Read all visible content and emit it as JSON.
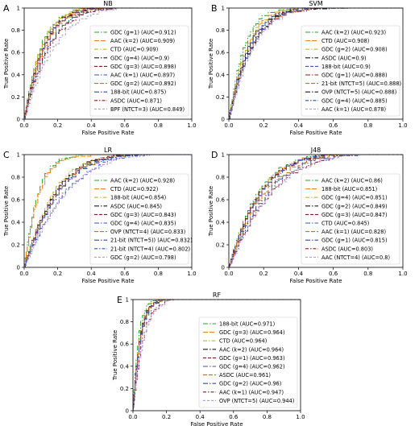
{
  "figure": {
    "panels": [
      {
        "letter": "A",
        "title": "NB",
        "xlabel": "False Positive Rate",
        "ylabel": "True Positive Rate",
        "legend": [
          {
            "label": "GDC (g=1) (AUC=0.912)",
            "color": "#2ca02c",
            "auc": 0.912
          },
          {
            "label": "AAC (k=2) (AUC=0.909)",
            "color": "#ff7f0e",
            "auc": 0.909
          },
          {
            "label": "CTD (AUC=0.909)",
            "color": "#bcbd22",
            "auc": 0.909
          },
          {
            "label": "GDC (g=4) (AUC=0.9)",
            "color": "#1a1a1a",
            "auc": 0.9
          },
          {
            "label": "GDC (g=3) (AUC=0.898)",
            "color": "#8b1a1a",
            "auc": 0.898
          },
          {
            "label": "AAC (k=1) (AUC=0.897)",
            "color": "#3f51b5",
            "auc": 0.897
          },
          {
            "label": "GDC (g=2) (AUC=0.892)",
            "color": "#d2691e",
            "auc": 0.892
          },
          {
            "label": "188-bit (AUC=0.875)",
            "color": "#2f4f9f",
            "auc": 0.875
          },
          {
            "label": "ASDC (AUC=0.871)",
            "color": "#8b1a1a",
            "auc": 0.871
          },
          {
            "label": "BPF (NTCT=3) (AUC=0.849)",
            "color": "#b19cd9",
            "auc": 0.849
          }
        ]
      },
      {
        "letter": "B",
        "title": "SVM",
        "xlabel": "False Positive Rate",
        "ylabel": "True Positive Rate",
        "legend": [
          {
            "label": "AAC (k=2) (AUC=0.923)",
            "color": "#2ca02c",
            "auc": 0.923
          },
          {
            "label": "CTD (AUC=0.908)",
            "color": "#ff7f0e",
            "auc": 0.908
          },
          {
            "label": "GDC (g=2) (AUC=0.908)",
            "color": "#bcbd22",
            "auc": 0.908
          },
          {
            "label": "ASDC (AUC=0.9)",
            "color": "#1a1a1a",
            "auc": 0.9
          },
          {
            "label": "188-bit (AUC=0.9)",
            "color": "#3f51b5",
            "auc": 0.9
          },
          {
            "label": "GDC (g=1) (AUC=0.888)",
            "color": "#8b1a1a",
            "auc": 0.888
          },
          {
            "label": "21-bit (NTCT=5) (AUC=0.888)",
            "color": "#d2691e",
            "auc": 0.888
          },
          {
            "label": "OVP (NTCT=5) (AUC=0.888)",
            "color": "#1a1a1a",
            "auc": 0.888
          },
          {
            "label": "GDC (g=4) (AUC=0.885)",
            "color": "#2f4f9f",
            "auc": 0.885
          },
          {
            "label": "AAC (k=1) (AUC=0.878)",
            "color": "#b19cd9",
            "auc": 0.878
          }
        ]
      },
      {
        "letter": "C",
        "title": "LR",
        "xlabel": "False Positive Rate",
        "ylabel": "True Positive Rate",
        "legend": [
          {
            "label": "AAC (k=2) (AUC=0.928)",
            "color": "#2ca02c",
            "auc": 0.928
          },
          {
            "label": "CTD (AUC=0.922)",
            "color": "#ff7f0e",
            "auc": 0.922
          },
          {
            "label": "188-bit (AUC=0.854)",
            "color": "#bcbd22",
            "auc": 0.854
          },
          {
            "label": "ASDC (AUC=0.845)",
            "color": "#1a1a1a",
            "auc": 0.845
          },
          {
            "label": "GDC (g=3) (AUC=0.843)",
            "color": "#8b1a1a",
            "auc": 0.843
          },
          {
            "label": "GDC (g=4) (AUC=0.835)",
            "color": "#3f51b5",
            "auc": 0.835
          },
          {
            "label": "OVP (NTCT=4) (AUC=0.833)",
            "color": "#d2691e",
            "auc": 0.833
          },
          {
            "label": "21-bit (NTCT=5)) (AUC=0.832)",
            "color": "#2f4f9f",
            "auc": 0.832
          },
          {
            "label": "21-bit (NTCT=4) (AUC=0.802)",
            "color": "#3f51b5",
            "auc": 0.802
          },
          {
            "label": "GDC (g=2) (AUC=0.798)",
            "color": "#b19cd9",
            "auc": 0.798
          }
        ]
      },
      {
        "letter": "D",
        "title": "J48",
        "xlabel": "False Positive Rate",
        "ylabel": "True Positive Rate",
        "legend": [
          {
            "label": "AAC (k=2) (AUC=0.86)",
            "color": "#2ca02c",
            "auc": 0.86
          },
          {
            "label": "188-bit (AUC=0.851)",
            "color": "#ff7f0e",
            "auc": 0.851
          },
          {
            "label": "GDC (g=4) (AUC=0.851)",
            "color": "#bcbd22",
            "auc": 0.851
          },
          {
            "label": "GDC (g=2) (AUC=0.849)",
            "color": "#1a1a1a",
            "auc": 0.849
          },
          {
            "label": "GDC (g=3) (AUC=0.847)",
            "color": "#8b1a1a",
            "auc": 0.847
          },
          {
            "label": "CTD (AUC=0.845)",
            "color": "#3f51b5",
            "auc": 0.845
          },
          {
            "label": "AAC (k=1) (AUC=0.828)",
            "color": "#d2691e",
            "auc": 0.828
          },
          {
            "label": "GDC (g=1) (AUC=0.815)",
            "color": "#2f4f9f",
            "auc": 0.815
          },
          {
            "label": "ASDC (AUC=0.803)",
            "color": "#8b1a1a",
            "auc": 0.803
          },
          {
            "label": "AAC (NTCT=4) (AUC=0.8)",
            "color": "#b19cd9",
            "auc": 0.8
          }
        ]
      },
      {
        "letter": "E",
        "title": "RF",
        "xlabel": "False Positive Rate",
        "ylabel": "True Positive Rate",
        "legend": [
          {
            "label": "188-bit (AUC=0.971)",
            "color": "#2ca02c",
            "auc": 0.971
          },
          {
            "label": "GDC (g=3) (AUC=0.964)",
            "color": "#ff7f0e",
            "auc": 0.964
          },
          {
            "label": "CTD (AUC=0.964)",
            "color": "#bcbd22",
            "auc": 0.964
          },
          {
            "label": "AAC (k=2) (AUC=0.964)",
            "color": "#1a1a1a",
            "auc": 0.964
          },
          {
            "label": "GDC (g=1) (AUC=0.963)",
            "color": "#8b1a1a",
            "auc": 0.963
          },
          {
            "label": "GDC (g=4) (AUC=0.962)",
            "color": "#3f51b5",
            "auc": 0.962
          },
          {
            "label": "ASDC (AUC=0.961)",
            "color": "#d2691e",
            "auc": 0.961
          },
          {
            "label": "GDC (g=2) (AUC=0.96)",
            "color": "#2f4f9f",
            "auc": 0.96
          },
          {
            "label": "AAC (k=1) (AUC=0.947)",
            "color": "#8b1a1a",
            "auc": 0.947
          },
          {
            "label": "OVP (NTCT=5) (AUC=0.944)",
            "color": "#b19cd9",
            "auc": 0.944
          }
        ]
      }
    ]
  },
  "chart_data": [
    {
      "type": "line",
      "title": "NB",
      "xlabel": "False Positive Rate",
      "ylabel": "True Positive Rate",
      "xlim": [
        0.0,
        1.0
      ],
      "ylim": [
        0.0,
        1.0
      ],
      "xticks": [
        "0.0",
        "0.2",
        "0.4",
        "0.6",
        "0.8",
        "1.0"
      ],
      "yticks": [
        "0",
        "0.2",
        "0.4",
        "0.6",
        "0.8",
        "1"
      ],
      "legend_position": "lower right",
      "grid": false,
      "series": [
        {
          "name": "GDC (g=1) (AUC=0.912)",
          "auc": 0.912
        },
        {
          "name": "AAC (k=2) (AUC=0.909)",
          "auc": 0.909
        },
        {
          "name": "CTD (AUC=0.909)",
          "auc": 0.909
        },
        {
          "name": "GDC (g=4) (AUC=0.9)",
          "auc": 0.9
        },
        {
          "name": "GDC (g=3) (AUC=0.898)",
          "auc": 0.898
        },
        {
          "name": "AAC (k=1) (AUC=0.897)",
          "auc": 0.897
        },
        {
          "name": "GDC (g=2) (AUC=0.892)",
          "auc": 0.892
        },
        {
          "name": "188-bit (AUC=0.875)",
          "auc": 0.875
        },
        {
          "name": "ASDC (AUC=0.871)",
          "auc": 0.871
        },
        {
          "name": "BPF (NTCT=3) (AUC=0.849)",
          "auc": 0.849
        }
      ]
    },
    {
      "type": "line",
      "title": "SVM",
      "xlabel": "False Positive Rate",
      "ylabel": "True Positive Rate",
      "xlim": [
        0.0,
        1.0
      ],
      "ylim": [
        0.0,
        1.0
      ],
      "xticks": [
        "0.0",
        "0.2",
        "0.4",
        "0.6",
        "0.8",
        "1.0"
      ],
      "yticks": [
        "0",
        "0.2",
        "0.4",
        "0.6",
        "0.8",
        "1"
      ],
      "legend_position": "lower right",
      "grid": false,
      "series": [
        {
          "name": "AAC (k=2) (AUC=0.923)",
          "auc": 0.923
        },
        {
          "name": "CTD (AUC=0.908)",
          "auc": 0.908
        },
        {
          "name": "GDC (g=2) (AUC=0.908)",
          "auc": 0.908
        },
        {
          "name": "ASDC (AUC=0.9)",
          "auc": 0.9
        },
        {
          "name": "188-bit (AUC=0.9)",
          "auc": 0.9
        },
        {
          "name": "GDC (g=1) (AUC=0.888)",
          "auc": 0.888
        },
        {
          "name": "21-bit (NTCT=5) (AUC=0.888)",
          "auc": 0.888
        },
        {
          "name": "OVP (NTCT=5) (AUC=0.888)",
          "auc": 0.888
        },
        {
          "name": "GDC (g=4) (AUC=0.885)",
          "auc": 0.885
        },
        {
          "name": "AAC (k=1) (AUC=0.878)",
          "auc": 0.878
        }
      ]
    },
    {
      "type": "line",
      "title": "LR",
      "xlabel": "False Positive Rate",
      "ylabel": "True Positive Rate",
      "xlim": [
        0.0,
        1.0
      ],
      "ylim": [
        0.0,
        1.0
      ],
      "xticks": [
        "0.0",
        "0.2",
        "0.4",
        "0.6",
        "0.8",
        "1.0"
      ],
      "yticks": [
        "0",
        "0.2",
        "0.4",
        "0.6",
        "0.8",
        "1"
      ],
      "legend_position": "lower right",
      "grid": false,
      "series": [
        {
          "name": "AAC (k=2) (AUC=0.928)",
          "auc": 0.928
        },
        {
          "name": "CTD (AUC=0.922)",
          "auc": 0.922
        },
        {
          "name": "188-bit (AUC=0.854)",
          "auc": 0.854
        },
        {
          "name": "ASDC (AUC=0.845)",
          "auc": 0.845
        },
        {
          "name": "GDC (g=3) (AUC=0.843)",
          "auc": 0.843
        },
        {
          "name": "GDC (g=4) (AUC=0.835)",
          "auc": 0.835
        },
        {
          "name": "OVP (NTCT=4) (AUC=0.833)",
          "auc": 0.833
        },
        {
          "name": "21-bit (NTCT=5)) (AUC=0.832)",
          "auc": 0.832
        },
        {
          "name": "21-bit (NTCT=4) (AUC=0.802)",
          "auc": 0.802
        },
        {
          "name": "GDC (g=2) (AUC=0.798)",
          "auc": 0.798
        }
      ]
    },
    {
      "type": "line",
      "title": "J48",
      "xlabel": "False Positive Rate",
      "ylabel": "True Positive Rate",
      "xlim": [
        0.0,
        1.0
      ],
      "ylim": [
        0.0,
        1.0
      ],
      "xticks": [
        "0.0",
        "0.2",
        "0.4",
        "0.6",
        "0.8",
        "1.0"
      ],
      "yticks": [
        "0",
        "0.2",
        "0.4",
        "0.6",
        "0.8",
        "1"
      ],
      "legend_position": "lower right",
      "grid": false,
      "series": [
        {
          "name": "AAC (k=2) (AUC=0.86)",
          "auc": 0.86
        },
        {
          "name": "188-bit (AUC=0.851)",
          "auc": 0.851
        },
        {
          "name": "GDC (g=4) (AUC=0.851)",
          "auc": 0.851
        },
        {
          "name": "GDC (g=2) (AUC=0.849)",
          "auc": 0.849
        },
        {
          "name": "GDC (g=3) (AUC=0.847)",
          "auc": 0.847
        },
        {
          "name": "CTD (AUC=0.845)",
          "auc": 0.845
        },
        {
          "name": "AAC (k=1) (AUC=0.828)",
          "auc": 0.828
        },
        {
          "name": "GDC (g=1) (AUC=0.815)",
          "auc": 0.815
        },
        {
          "name": "ASDC (AUC=0.803)",
          "auc": 0.803
        },
        {
          "name": "AAC (NTCT=4) (AUC=0.8)",
          "auc": 0.8
        }
      ]
    },
    {
      "type": "line",
      "title": "RF",
      "xlabel": "False Positive Rate",
      "ylabel": "True Positive Rate",
      "xlim": [
        0.0,
        1.0
      ],
      "ylim": [
        0.0,
        1.0
      ],
      "xticks": [
        "0.0",
        "0.2",
        "0.4",
        "0.6",
        "0.8",
        "1.0"
      ],
      "yticks": [
        "0",
        "0.2",
        "0.4",
        "0.6",
        "0.8",
        "1"
      ],
      "legend_position": "lower right",
      "grid": false,
      "series": [
        {
          "name": "188-bit (AUC=0.971)",
          "auc": 0.971
        },
        {
          "name": "GDC (g=3) (AUC=0.964)",
          "auc": 0.964
        },
        {
          "name": "CTD (AUC=0.964)",
          "auc": 0.964
        },
        {
          "name": "AAC (k=2) (AUC=0.964)",
          "auc": 0.964
        },
        {
          "name": "GDC (g=1) (AUC=0.963)",
          "auc": 0.963
        },
        {
          "name": "GDC (g=4) (AUC=0.962)",
          "auc": 0.962
        },
        {
          "name": "ASDC (AUC=0.961)",
          "auc": 0.961
        },
        {
          "name": "GDC (g=2) (AUC=0.96)",
          "auc": 0.96
        },
        {
          "name": "AAC (k=1) (AUC=0.947)",
          "auc": 0.947
        },
        {
          "name": "OVP (NTCT=5) (AUC=0.944)",
          "auc": 0.944
        }
      ]
    }
  ]
}
